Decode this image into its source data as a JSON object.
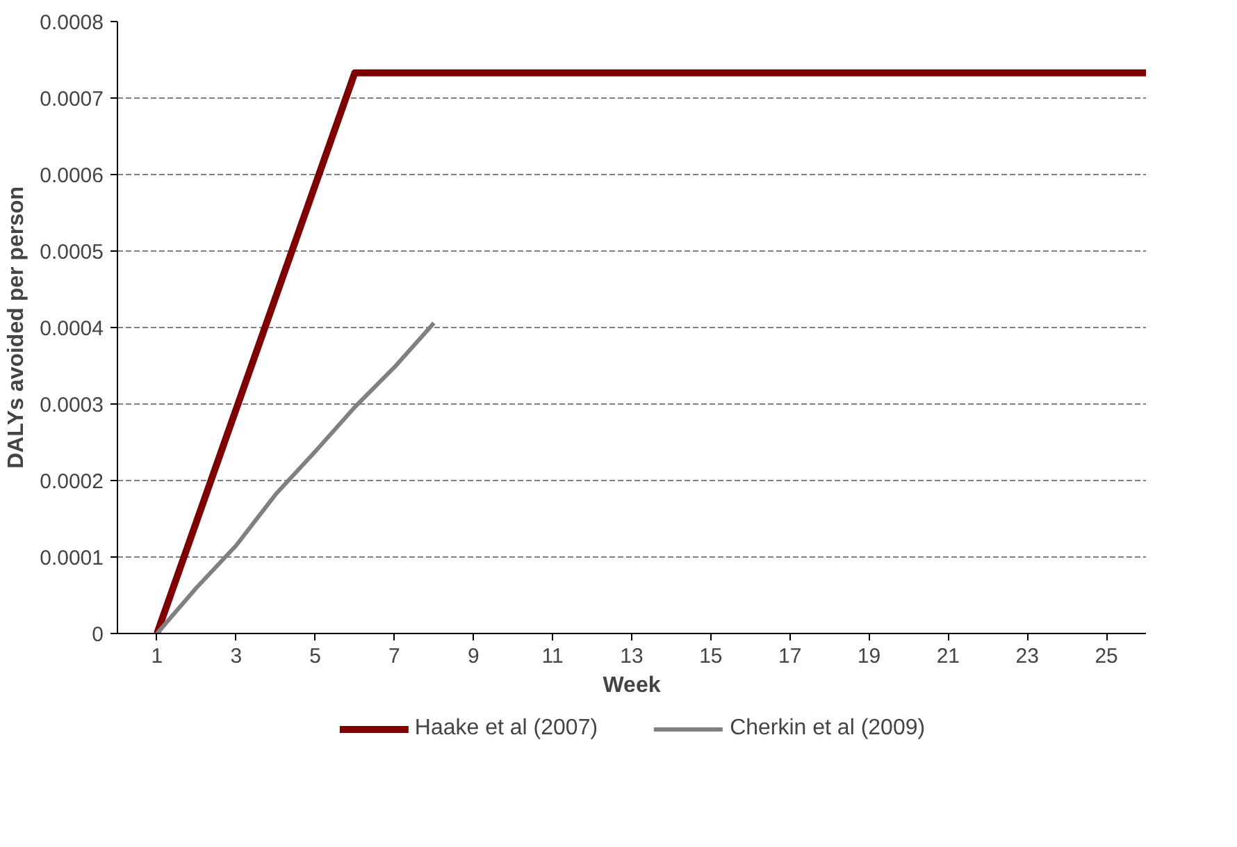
{
  "chart_data": {
    "type": "line",
    "xlabel": "Week",
    "ylabel": "DALYs avoided per person",
    "xlim": [
      0,
      26
    ],
    "xticks": [
      1,
      3,
      5,
      7,
      9,
      11,
      13,
      15,
      17,
      19,
      21,
      23,
      25
    ],
    "ylim": [
      0,
      0.0008
    ],
    "yticks": [
      0,
      0.0001,
      0.0002,
      0.0003,
      0.0004,
      0.0005,
      0.0006,
      0.0007,
      0.0008
    ],
    "grid": "y",
    "legend": "bottom",
    "marker": "none",
    "line_style": "solid",
    "series": [
      {
        "name": "Haake et al (2007)",
        "color": "#7f0000",
        "x": [
          1,
          6,
          26
        ],
        "values": [
          0,
          0.000733,
          0.000733
        ]
      },
      {
        "name": "Cherkin et al (2009)",
        "color": "#808080",
        "x": [
          1,
          2,
          3,
          4,
          5,
          6,
          7,
          8
        ],
        "values": [
          0,
          6e-05,
          0.000115,
          0.000182,
          0.000238,
          0.000296,
          0.000348,
          0.000406
        ]
      }
    ]
  }
}
